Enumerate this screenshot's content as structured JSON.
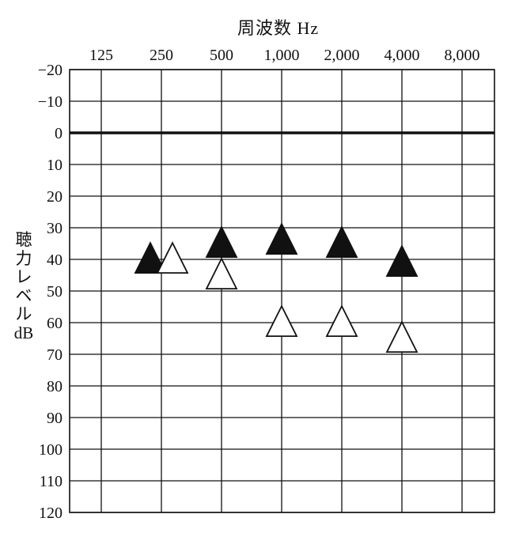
{
  "chart_data": {
    "type": "scatter",
    "title": "",
    "xlabel": "周波数 Hz",
    "ylabel_lines": [
      "聴",
      "力",
      "レ",
      "ベ",
      "ル",
      "dB"
    ],
    "x_categories": [
      "125",
      "250",
      "500",
      "1,000",
      "2,000",
      "4,000",
      "8,000"
    ],
    "y_ticks": [
      "−20",
      "−10",
      "0",
      "10",
      "20",
      "30",
      "40",
      "50",
      "60",
      "70",
      "80",
      "90",
      "100",
      "110",
      "120"
    ],
    "ylim": [
      -20,
      120
    ],
    "y_inverted": true,
    "grid": true,
    "reference_line_y": 0,
    "series": [
      {
        "marker": "filled-triangle",
        "points": [
          {
            "x": "250",
            "y": 40
          },
          {
            "x": "500",
            "y": 35
          },
          {
            "x": "1,000",
            "y": 34
          },
          {
            "x": "2,000",
            "y": 35
          },
          {
            "x": "4,000",
            "y": 41
          }
        ]
      },
      {
        "marker": "open-triangle",
        "points": [
          {
            "x": "250",
            "y": 40
          },
          {
            "x": "500",
            "y": 45
          },
          {
            "x": "1,000",
            "y": 60
          },
          {
            "x": "2,000",
            "y": 60
          },
          {
            "x": "4,000",
            "y": 65
          }
        ]
      }
    ]
  }
}
